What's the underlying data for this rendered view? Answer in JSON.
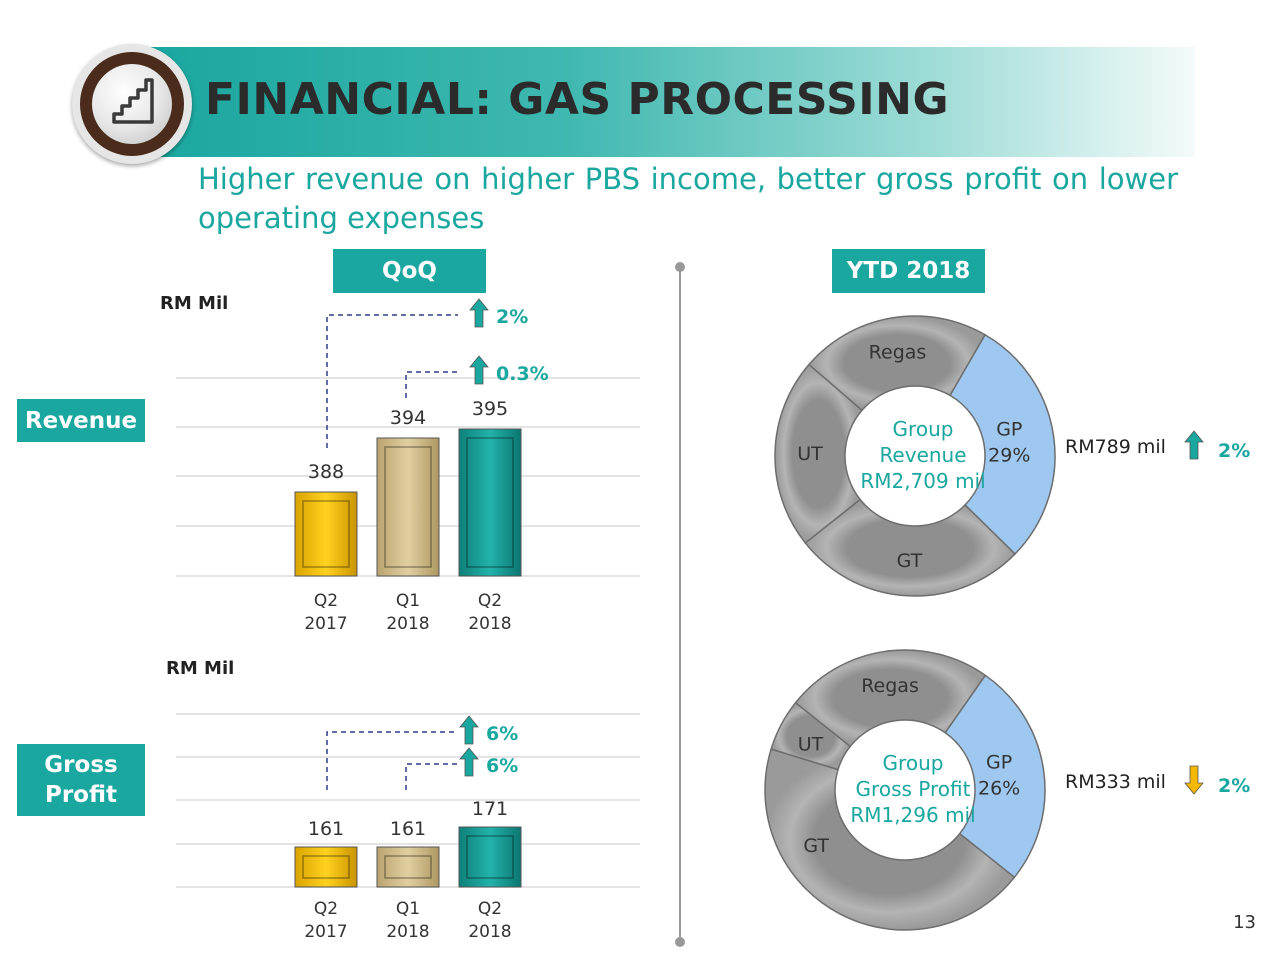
{
  "header": {
    "title": "FINANCIAL: GAS PROCESSING",
    "subtitle": "Higher revenue on higher PBS income, better gross profit on lower operating expenses"
  },
  "tabs": {
    "qoq": "QoQ",
    "ytd": "YTD 2018"
  },
  "labels": {
    "revenue": "Revenue",
    "gross_profit": "Gross\nProfit"
  },
  "page_number": "13",
  "colors": {
    "accent": "#1aa79f",
    "q2_2017": "#ffc90e",
    "q1_2018": "#d9c495",
    "q2_2018": "#1aa79f",
    "donut_gray": "#a6a6a6",
    "donut_highlight": "#9ec8f0",
    "arrow_up": "#1aa79f",
    "arrow_down": "#f5b700"
  },
  "chart_data": [
    {
      "type": "bar",
      "ylabel": "RM Mil",
      "categories": [
        "Q2\n2017",
        "Q1\n2018",
        "Q2\n2018"
      ],
      "values": [
        388,
        394,
        395
      ],
      "value_labels": [
        "388",
        "394",
        "395"
      ],
      "changes": [
        {
          "from": "Q2 2017",
          "to": "Q2 2018",
          "label": "2%",
          "direction": "up"
        },
        {
          "from": "Q1 2018",
          "to": "Q2 2018",
          "label": "0.3%",
          "direction": "up"
        }
      ],
      "grid": true
    },
    {
      "type": "bar",
      "ylabel": "RM Mil",
      "categories": [
        "Q2\n2017",
        "Q1\n2018",
        "Q2\n2018"
      ],
      "values": [
        161,
        161,
        171
      ],
      "value_labels": [
        "161",
        "161",
        "171"
      ],
      "changes": [
        {
          "from": "Q2 2017",
          "to": "Q2 2018",
          "label": "6%",
          "direction": "up"
        },
        {
          "from": "Q1 2018",
          "to": "Q2 2018",
          "label": "6%",
          "direction": "up"
        }
      ],
      "grid": true
    },
    {
      "type": "pie",
      "center_lines": [
        "Group",
        "Revenue",
        "RM2,709 mil"
      ],
      "slices": [
        {
          "label": "GP",
          "value": 29,
          "value_label": "29%",
          "highlight": true
        },
        {
          "label": "GT",
          "value": 27
        },
        {
          "label": "UT",
          "value": 22
        },
        {
          "label": "Regas",
          "value": 22
        }
      ],
      "highlight_note": {
        "amount": "RM789 mil",
        "change": "2%",
        "direction": "up"
      }
    },
    {
      "type": "pie",
      "center_lines": [
        "Group",
        "Gross Profit",
        "RM1,296 mil"
      ],
      "slices": [
        {
          "label": "GP",
          "value": 26,
          "value_label": "26%",
          "highlight": true
        },
        {
          "label": "GT",
          "value": 44
        },
        {
          "label": "UT",
          "value": 6
        },
        {
          "label": "Regas",
          "value": 24
        }
      ],
      "highlight_note": {
        "amount": "RM333 mil",
        "change": "2%",
        "direction": "down"
      }
    }
  ]
}
